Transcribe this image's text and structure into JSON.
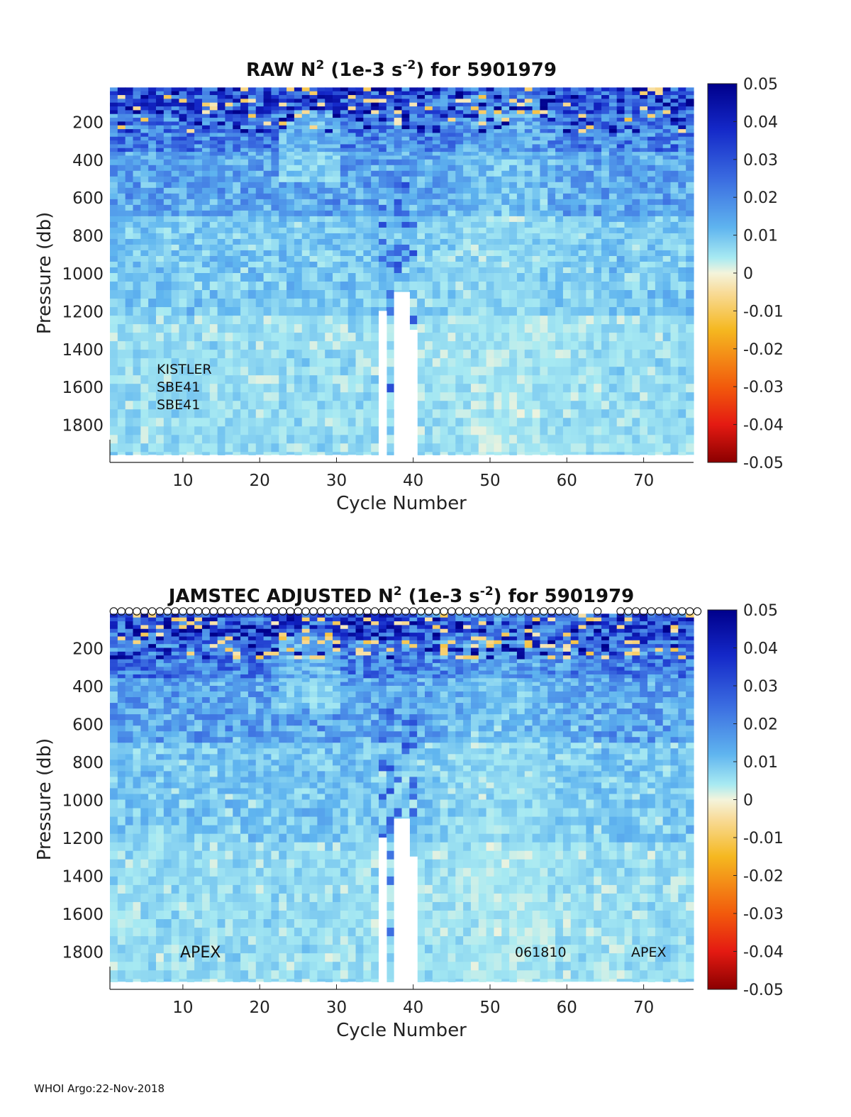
{
  "footer": "WHOI Argo:22-Nov-2018",
  "chart_data": [
    {
      "type": "heatmap",
      "title": {
        "prefix": "RAW N",
        "sup1": "2",
        "mid": " (1e-3 s",
        "sup2": "-2",
        "suffix": ") for 5901979"
      },
      "xlabel": "Cycle Number",
      "ylabel": "Pressure (db)",
      "x_ticks": [
        10,
        20,
        30,
        40,
        50,
        60,
        70
      ],
      "y_ticks": [
        200,
        400,
        600,
        800,
        1000,
        1200,
        1400,
        1600,
        1800
      ],
      "xlim": [
        1,
        76
      ],
      "ylim": [
        0,
        2000
      ],
      "clim": [
        -0.05,
        0.05
      ],
      "colorbar_ticks": [
        "0.05",
        "0.04",
        "0.03",
        "0.02",
        "0.01",
        "0",
        "-0.01",
        "-0.02",
        "-0.03",
        "-0.04",
        "-0.05"
      ],
      "annotations": [
        "KISTLER",
        "SBE41",
        "SBE41"
      ],
      "missing_profile_depth": {
        "36": 1200,
        "38": 1100,
        "39": 1100,
        "40": 1300
      }
    },
    {
      "type": "heatmap",
      "title": {
        "prefix": "JAMSTEC  ADJUSTED N",
        "sup1": "2",
        "mid": " (1e-3 s",
        "sup2": "-2",
        "suffix": ") for 5901979"
      },
      "xlabel": "Cycle Number",
      "ylabel": "Pressure (db)",
      "x_ticks": [
        10,
        20,
        30,
        40,
        50,
        60,
        70
      ],
      "y_ticks": [
        200,
        400,
        600,
        800,
        1000,
        1200,
        1400,
        1600,
        1800
      ],
      "xlim": [
        1,
        76
      ],
      "ylim": [
        0,
        2000
      ],
      "clim": [
        -0.05,
        0.05
      ],
      "colorbar_ticks": [
        "0.05",
        "0.04",
        "0.03",
        "0.02",
        "0.01",
        "0",
        "-0.01",
        "-0.02",
        "-0.03",
        "-0.04",
        "-0.05"
      ],
      "annotations": [
        "APEX",
        "061810",
        "APEX"
      ],
      "qc_marker": "o",
      "qc_missing_cycles": [
        62,
        63,
        65,
        66
      ],
      "missing_profile_depth": {
        "36": 1200,
        "38": 1100,
        "39": 1100,
        "40": 1300
      }
    }
  ]
}
